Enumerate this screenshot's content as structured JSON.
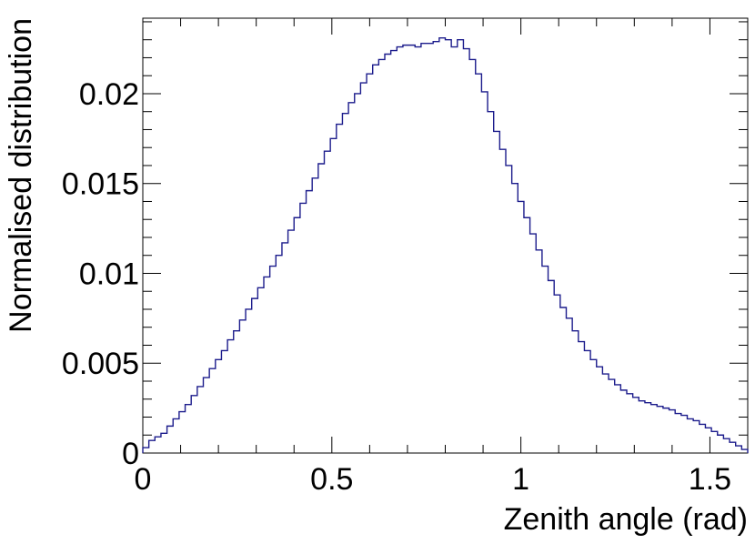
{
  "chart_data": {
    "type": "histogram",
    "title": "",
    "xlabel": "Zenith angle (rad)",
    "ylabel": "Normalised distribution",
    "xlim": [
      0,
      1.6
    ],
    "ylim": [
      0,
      0.0242
    ],
    "grid": false,
    "legend": "none",
    "line_color": "#1c1c8c",
    "x_ticks": [
      {
        "value": 0,
        "label": "0"
      },
      {
        "value": 0.5,
        "label": "0.5"
      },
      {
        "value": 1,
        "label": "1"
      },
      {
        "value": 1.5,
        "label": "1.5"
      }
    ],
    "y_ticks": [
      {
        "value": 0,
        "label": "0"
      },
      {
        "value": 0.005,
        "label": "0.005"
      },
      {
        "value": 0.01,
        "label": "0.01"
      },
      {
        "value": 0.015,
        "label": "0.015"
      },
      {
        "value": 0.02,
        "label": "0.02"
      }
    ],
    "bin_width": 0.016,
    "values": [
      0.0003,
      0.0007,
      0.0009,
      0.0011,
      0.0015,
      0.0019,
      0.0023,
      0.0027,
      0.0032,
      0.0037,
      0.0042,
      0.0047,
      0.0052,
      0.0057,
      0.0063,
      0.0068,
      0.0074,
      0.008,
      0.0086,
      0.0092,
      0.0098,
      0.0104,
      0.011,
      0.0117,
      0.0124,
      0.0131,
      0.0139,
      0.0146,
      0.0153,
      0.0161,
      0.0168,
      0.0175,
      0.0183,
      0.0189,
      0.0195,
      0.02,
      0.0206,
      0.0211,
      0.0216,
      0.0219,
      0.0222,
      0.0224,
      0.0226,
      0.0227,
      0.0227,
      0.0226,
      0.0228,
      0.0228,
      0.0229,
      0.0231,
      0.023,
      0.0226,
      0.023,
      0.0225,
      0.0219,
      0.0211,
      0.0201,
      0.019,
      0.0179,
      0.0169,
      0.016,
      0.015,
      0.014,
      0.0131,
      0.0122,
      0.0113,
      0.0104,
      0.0096,
      0.0088,
      0.0081,
      0.0075,
      0.0068,
      0.0062,
      0.0057,
      0.0052,
      0.0048,
      0.0044,
      0.0041,
      0.0038,
      0.0035,
      0.0033,
      0.0031,
      0.0029,
      0.0028,
      0.0027,
      0.0026,
      0.0025,
      0.0024,
      0.0022,
      0.0021,
      0.0019,
      0.0018,
      0.0016,
      0.0014,
      0.0012,
      0.001,
      0.0008,
      0.0006,
      0.0004,
      0.0002
    ]
  }
}
